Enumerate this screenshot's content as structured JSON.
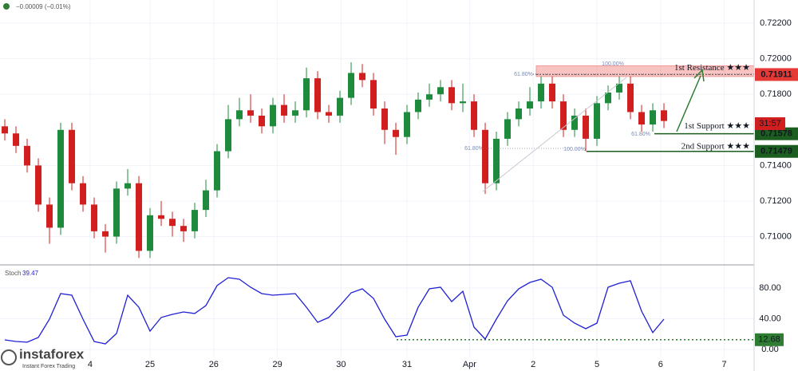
{
  "header": {
    "change": "−0.00009 (−0.01%)",
    "logo": "instaforex",
    "logo_tagline": "Instant Forex Trading"
  },
  "chart_data": [
    {
      "type": "candlestick",
      "x": [
        0,
        1,
        2,
        3,
        4,
        5,
        6,
        7,
        8,
        9,
        10,
        11,
        12,
        13,
        14,
        15,
        16,
        17,
        18,
        19,
        20,
        21,
        22,
        23,
        24,
        25,
        26,
        27,
        28,
        29,
        30,
        31,
        32,
        33,
        34,
        35,
        36,
        37,
        38,
        39,
        40,
        41,
        42,
        43,
        44,
        45,
        46,
        47,
        48,
        49,
        50,
        51,
        52,
        53,
        54,
        55,
        56,
        57,
        58,
        59
      ],
      "open": [
        0.7162,
        0.7158,
        0.7151,
        0.714,
        0.7118,
        0.7105,
        0.716,
        0.713,
        0.7118,
        0.7103,
        0.71,
        0.7127,
        0.713,
        0.7092,
        0.7112,
        0.711,
        0.7106,
        0.7103,
        0.7115,
        0.7126,
        0.7148,
        0.7166,
        0.7171,
        0.7168,
        0.7162,
        0.7174,
        0.7168,
        0.7171,
        0.7189,
        0.717,
        0.7168,
        0.7178,
        0.7192,
        0.7188,
        0.7172,
        0.716,
        0.7156,
        0.717,
        0.7177,
        0.718,
        0.7184,
        0.7175,
        0.7176,
        0.716,
        0.713,
        0.7155,
        0.7166,
        0.7172,
        0.7176,
        0.7186,
        0.7176,
        0.716,
        0.7168,
        0.7155,
        0.7175,
        0.7181,
        0.7186,
        0.717,
        0.7163,
        0.7171
      ],
      "high": [
        0.7166,
        0.7162,
        0.7155,
        0.7144,
        0.7122,
        0.7164,
        0.7164,
        0.7134,
        0.7122,
        0.7107,
        0.7131,
        0.7138,
        0.7134,
        0.7116,
        0.712,
        0.7114,
        0.711,
        0.7119,
        0.7132,
        0.7152,
        0.7174,
        0.7178,
        0.718,
        0.7172,
        0.7178,
        0.718,
        0.7176,
        0.7195,
        0.7193,
        0.7174,
        0.7182,
        0.7198,
        0.7197,
        0.7192,
        0.7176,
        0.7164,
        0.7174,
        0.7181,
        0.7186,
        0.7188,
        0.7188,
        0.7186,
        0.718,
        0.7164,
        0.7159,
        0.717,
        0.7176,
        0.7184,
        0.719,
        0.719,
        0.718,
        0.7172,
        0.7172,
        0.7179,
        0.7185,
        0.719,
        0.719,
        0.7174,
        0.7175,
        0.7175
      ],
      "low": [
        0.7154,
        0.7147,
        0.7136,
        0.7114,
        0.7096,
        0.7101,
        0.7126,
        0.7114,
        0.7099,
        0.7091,
        0.7096,
        0.7123,
        0.7088,
        0.7088,
        0.7106,
        0.71,
        0.7097,
        0.7099,
        0.7111,
        0.7122,
        0.7144,
        0.7162,
        0.7164,
        0.7158,
        0.7158,
        0.7164,
        0.7164,
        0.7167,
        0.7166,
        0.7164,
        0.7164,
        0.7174,
        0.7184,
        0.7168,
        0.7152,
        0.7146,
        0.7152,
        0.7166,
        0.7173,
        0.7176,
        0.7171,
        0.717,
        0.7156,
        0.7124,
        0.7126,
        0.7151,
        0.7162,
        0.7168,
        0.7172,
        0.7172,
        0.7156,
        0.7156,
        0.7148,
        0.7151,
        0.7171,
        0.7177,
        0.7166,
        0.7159,
        0.7159,
        0.7161
      ],
      "close": [
        0.7158,
        0.7151,
        0.714,
        0.7118,
        0.7105,
        0.716,
        0.713,
        0.7118,
        0.7103,
        0.71,
        0.7127,
        0.713,
        0.7092,
        0.7112,
        0.711,
        0.7106,
        0.7103,
        0.7115,
        0.7126,
        0.7148,
        0.7166,
        0.7171,
        0.7168,
        0.7162,
        0.7174,
        0.7168,
        0.7171,
        0.7189,
        0.717,
        0.7168,
        0.7178,
        0.7192,
        0.7188,
        0.7172,
        0.716,
        0.7156,
        0.717,
        0.7177,
        0.718,
        0.7184,
        0.7175,
        0.7176,
        0.716,
        0.713,
        0.7155,
        0.7166,
        0.7172,
        0.7176,
        0.7186,
        0.7176,
        0.716,
        0.7168,
        0.7155,
        0.7175,
        0.7181,
        0.7186,
        0.717,
        0.7163,
        0.7171,
        0.7165
      ],
      "up_color": "#1e8a3c",
      "down_color": "#d11f1f",
      "xlim": [
        -0.43,
        67.07
      ],
      "xticks": [
        {
          "value": 7.64,
          "label": "4"
        },
        {
          "value": 13,
          "label": "25"
        },
        {
          "value": 18.7,
          "label": "26"
        },
        {
          "value": 24.4,
          "label": "29"
        },
        {
          "value": 30.1,
          "label": "30"
        },
        {
          "value": 36,
          "label": "31"
        },
        {
          "value": 41.6,
          "label": "Apr"
        },
        {
          "value": 47.3,
          "label": "2"
        },
        {
          "value": 53,
          "label": "5"
        },
        {
          "value": 58.7,
          "label": "6"
        },
        {
          "value": 64.4,
          "label": "7"
        }
      ],
      "ylim": [
        0.7085,
        0.7233
      ],
      "yticks": [
        {
          "value": 0.722,
          "label": "0.72200"
        },
        {
          "value": 0.72,
          "label": "0.72000"
        },
        {
          "value": 0.718,
          "label": "0.71800"
        },
        {
          "value": 0.714,
          "label": "0.71400"
        },
        {
          "value": 0.712,
          "label": "0.71200"
        },
        {
          "value": 0.71,
          "label": "0.71000"
        }
      ],
      "resistance_zone": [
        0.719,
        0.7196
      ],
      "levels": [
        {
          "text": "1st Resistance ★★★",
          "value": 0.71911,
          "color": "#e53935"
        },
        {
          "text": "1st Support ★★★",
          "value": 0.71578,
          "color": "#1b5e20"
        },
        {
          "text": "2nd Support ★★★",
          "value": 0.71479,
          "color": "#1b5e20"
        }
      ],
      "countdown": "31:57",
      "fib_labels": [
        "100.00%",
        "61.80%",
        "61.80%",
        "100.00%",
        "61.80%"
      ]
    },
    {
      "type": "line",
      "title": "Stoch",
      "last": "39.47",
      "x": [
        0,
        1,
        2,
        3,
        4,
        5,
        6,
        7,
        8,
        9,
        10,
        11,
        12,
        13,
        14,
        15,
        16,
        17,
        18,
        19,
        20,
        21,
        22,
        23,
        24,
        25,
        26,
        27,
        28,
        29,
        30,
        31,
        32,
        33,
        34,
        35,
        36,
        37,
        38,
        39,
        40,
        41,
        42,
        43,
        44,
        45,
        46,
        47,
        48,
        49,
        50,
        51,
        52,
        53,
        54,
        55,
        56,
        57,
        58,
        59
      ],
      "values": [
        12.5,
        10.4,
        9.4,
        15.6,
        39.5,
        72.7,
        70.6,
        39.5,
        10.4,
        7.3,
        20.8,
        70.6,
        55,
        23.9,
        41.6,
        45.7,
        48.8,
        46.8,
        57.1,
        83.1,
        93.5,
        91.4,
        81,
        72.7,
        70.6,
        71.7,
        72.7,
        55,
        35.3,
        41.6,
        57.1,
        73.8,
        79,
        66.5,
        39.5,
        16.6,
        18.7,
        55,
        79,
        81,
        62.3,
        75.8,
        29.1,
        13.5,
        39.5,
        63.4,
        79,
        87.3,
        91.4,
        81,
        44.7,
        34.3,
        27,
        34.3,
        81,
        86.2,
        89.4,
        49.9,
        22,
        39.47
      ],
      "color": "#1f1fd6",
      "xlim": [
        -0.43,
        67.07
      ],
      "ylim": [
        -10.4,
        107
      ],
      "yticks": [
        {
          "value": 80,
          "label": "80.00"
        },
        {
          "value": 40,
          "label": "40.00"
        },
        {
          "value": 0,
          "label": "0.00"
        }
      ],
      "level": 12.68,
      "level_color": "#2e7d32"
    }
  ]
}
